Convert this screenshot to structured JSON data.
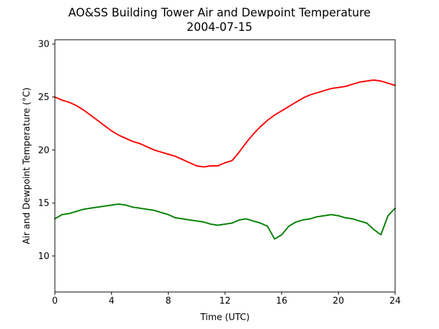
{
  "chart_data": {
    "type": "line",
    "title": "AO&SS Building Tower Air and Dewpoint Temperature",
    "subtitle": "2004-07-15",
    "xlabel": "Time (UTC)",
    "ylabel": "Air and Dewpoint Temperature (°C)",
    "xlim": [
      0,
      24
    ],
    "ylim": [
      6.6,
      30.4
    ],
    "xticks": [
      0,
      4,
      8,
      12,
      16,
      20,
      24
    ],
    "yticks": [
      10,
      15,
      20,
      25,
      30
    ],
    "grid": false,
    "legend": "none",
    "series": [
      {
        "color": "#ff0000",
        "x": [
          0,
          0.5,
          1,
          1.5,
          2,
          2.5,
          3,
          3.5,
          4,
          4.5,
          5,
          5.5,
          6,
          6.5,
          7,
          7.5,
          8,
          8.5,
          9,
          9.5,
          10,
          10.5,
          11,
          11.5,
          12,
          12.5,
          13,
          13.5,
          14,
          14.5,
          15,
          15.5,
          16,
          16.5,
          17,
          17.5,
          18,
          18.5,
          19,
          19.5,
          20,
          20.5,
          21,
          21.5,
          22,
          22.5,
          23,
          23.5,
          24
        ],
        "y": [
          25.0,
          24.7,
          24.5,
          24.2,
          23.8,
          23.3,
          22.8,
          22.3,
          21.8,
          21.4,
          21.1,
          20.8,
          20.6,
          20.3,
          20.0,
          19.8,
          19.6,
          19.4,
          19.1,
          18.8,
          18.5,
          18.4,
          18.5,
          18.5,
          18.8,
          19.0,
          19.8,
          20.7,
          21.5,
          22.2,
          22.8,
          23.3,
          23.7,
          24.1,
          24.5,
          24.9,
          25.2,
          25.4,
          25.6,
          25.8,
          25.9,
          26.0,
          26.2,
          26.4,
          26.5,
          26.6,
          26.5,
          26.3,
          26.1
        ]
      },
      {
        "color": "#008000",
        "x": [
          0,
          0.5,
          1,
          1.5,
          2,
          2.5,
          3,
          3.5,
          4,
          4.5,
          5,
          5.5,
          6,
          6.5,
          7,
          7.5,
          8,
          8.5,
          9,
          9.5,
          10,
          10.5,
          11,
          11.5,
          12,
          12.5,
          13,
          13.5,
          14,
          14.5,
          15,
          15.5,
          16,
          16.5,
          17,
          17.5,
          18,
          18.5,
          19,
          19.5,
          20,
          20.5,
          21,
          21.5,
          22,
          22.5,
          23,
          23.5,
          24
        ],
        "y": [
          13.5,
          13.9,
          14.0,
          14.2,
          14.4,
          14.5,
          14.6,
          14.7,
          14.8,
          14.9,
          14.8,
          14.6,
          14.5,
          14.4,
          14.3,
          14.1,
          13.9,
          13.6,
          13.5,
          13.4,
          13.3,
          13.2,
          13.0,
          12.9,
          13.0,
          13.1,
          13.4,
          13.5,
          13.3,
          13.1,
          12.8,
          11.6,
          12.0,
          12.8,
          13.2,
          13.4,
          13.5,
          13.7,
          13.8,
          13.9,
          13.8,
          13.6,
          13.5,
          13.3,
          13.1,
          12.5,
          12.0,
          13.8,
          14.5
        ]
      }
    ]
  }
}
